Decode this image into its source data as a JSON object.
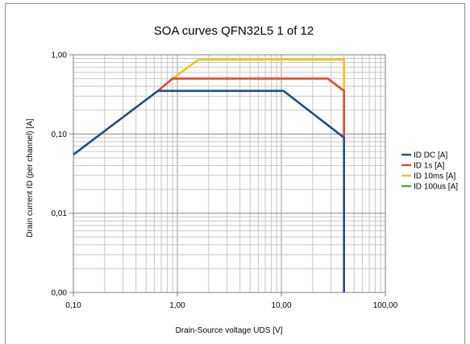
{
  "chart_data": {
    "type": "line",
    "title": "SOA curves QFN32L5 1 of 12",
    "xlabel": "Drain-Source voltage UDS [V]",
    "ylabel": "Drain current ID (per channel) [A]",
    "x_scale": "log",
    "y_scale": "log",
    "xlim": [
      0.1,
      100
    ],
    "ylim": [
      0.001,
      1
    ],
    "x_ticks": [
      0.1,
      1,
      10,
      100
    ],
    "x_tick_labels": [
      "0,10",
      "1,00",
      "10,00",
      "100,00"
    ],
    "y_ticks": [
      0.001,
      0.01,
      0.1,
      1
    ],
    "y_tick_labels": [
      "0,00",
      "0,01",
      "0,10",
      "1,00"
    ],
    "grid": true,
    "legend_position": "right",
    "series": [
      {
        "name": "ID DC [A]",
        "color": "#1F4E8C",
        "x": [
          0.1,
          0.65,
          10.5,
          40,
          40
        ],
        "y": [
          0.055,
          0.35,
          0.35,
          0.09,
          0.001
        ]
      },
      {
        "name": "ID 1s [A]",
        "color": "#E8482A",
        "x": [
          0.65,
          0.9,
          28,
          40,
          40
        ],
        "y": [
          0.35,
          0.5,
          0.5,
          0.35,
          0.09
        ]
      },
      {
        "name": "ID 10ms [A]",
        "color": "#F5C21C",
        "x": [
          0.9,
          1.6,
          40,
          40
        ],
        "y": [
          0.5,
          0.87,
          0.87,
          0.35
        ]
      },
      {
        "name": "ID 100us [A]",
        "color": "#3DAE49",
        "x": [],
        "y": []
      }
    ]
  }
}
